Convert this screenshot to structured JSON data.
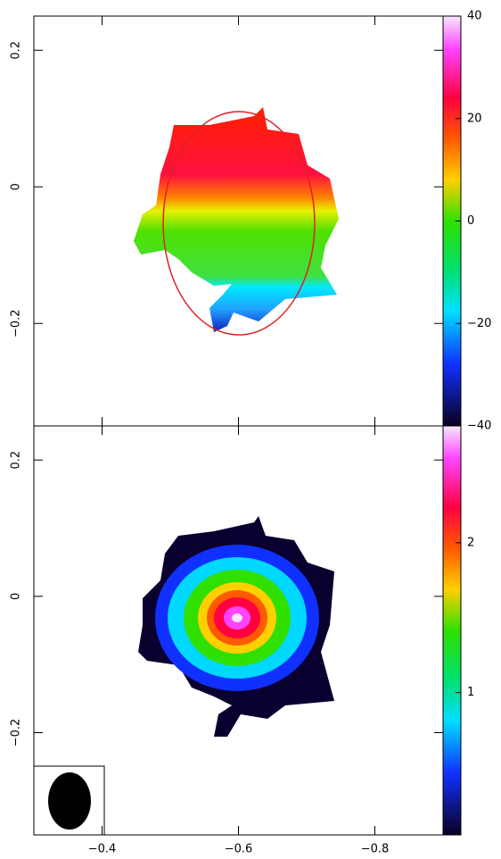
{
  "chart_data": [
    {
      "type": "heatmap",
      "xlim": [
        -0.3,
        -0.9
      ],
      "ylim": [
        -0.35,
        0.25
      ],
      "xticks": [
        -0.4,
        -0.6,
        -0.8
      ],
      "yticks": [
        {
          "value": 0.2,
          "label": "0.2"
        },
        0,
        {
          "value": -0.2,
          "label": "−0.2"
        }
      ],
      "colorbar": {
        "lim": [
          -40,
          40
        ],
        "ticks": [
          40,
          20,
          0,
          {
            "value": -20,
            "label": "−20"
          },
          {
            "value": -40,
            "label": "−40"
          }
        ]
      }
    },
    {
      "type": "heatmap",
      "xlim": [
        -0.3,
        -0.9
      ],
      "ylim": [
        -0.35,
        0.25
      ],
      "xticks": [
        {
          "value": -0.4,
          "label": "−0.4"
        },
        {
          "value": -0.6,
          "label": "−0.6"
        },
        {
          "value": -0.8,
          "label": "−0.8"
        }
      ],
      "yticks": [
        {
          "value": 0.2,
          "label": "0.2"
        },
        0,
        {
          "value": -0.2,
          "label": "−0.2"
        }
      ],
      "colorbar": {
        "lim": [
          0.05,
          2.78
        ],
        "ticks": [
          1,
          2
        ]
      }
    }
  ]
}
